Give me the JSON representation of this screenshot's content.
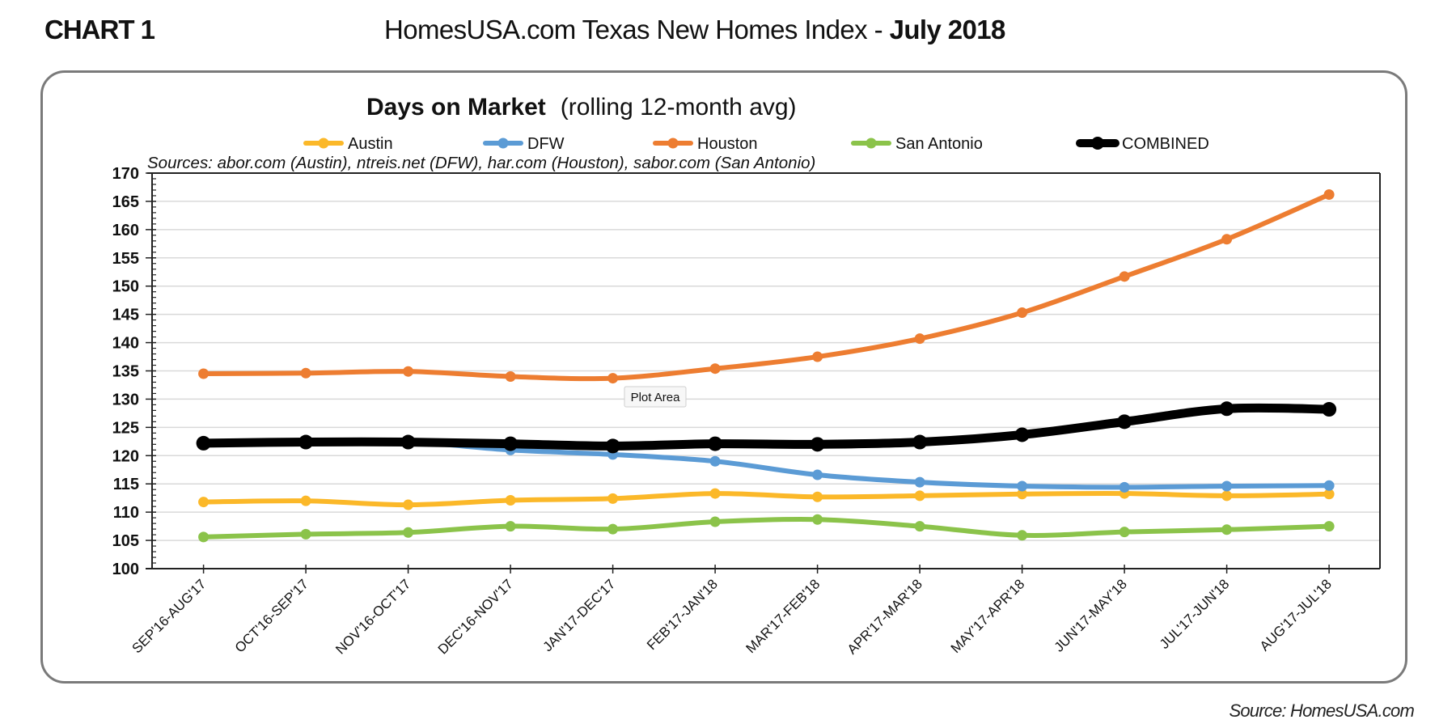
{
  "header": {
    "chart_number": "CHART 1",
    "title_prefix": "HomesUSA.com Texas New Homes Index - ",
    "title_bold": "July 2018"
  },
  "footer": {
    "source": "Source: HomesUSA.com"
  },
  "tooltip": {
    "label": "Plot Area"
  },
  "colors": {
    "Austin": "#FBB829",
    "DFW": "#5B9BD5",
    "Houston": "#ED7D31",
    "San Antonio": "#8BC34A",
    "COMBINED": "#000000",
    "grid": "#d9d9d9",
    "card_border": "#7a7a7a"
  },
  "chart_data": {
    "type": "line",
    "title": "Days on Market",
    "subtitle": "(rolling 12-month avg)",
    "annotation": "Sources:  abor.com (Austin), ntreis.net (DFW), har.com (Houston), sabor.com (San Antonio)",
    "xlabel": "",
    "ylabel": "",
    "ylim": [
      100,
      170
    ],
    "yticks": [
      100,
      105,
      110,
      115,
      120,
      125,
      130,
      135,
      140,
      145,
      150,
      155,
      160,
      165,
      170
    ],
    "grid": true,
    "legend_position": "top",
    "categories": [
      "SEP'16-AUG'17",
      "OCT'16-SEP'17",
      "NOV'16-OCT'17",
      "DEC'16-NOV'17",
      "JAN'17-DEC'17",
      "FEB'17-JAN'18",
      "MAR'17-FEB'18",
      "APR'17-MAR'18",
      "MAY'17-APR'18",
      "JUN'17-MAY'18",
      "JUL'17-JUN'18",
      "AUG'17-JUL'18"
    ],
    "series": [
      {
        "name": "Austin",
        "values": [
          111.8,
          112.0,
          111.3,
          112.1,
          112.4,
          113.3,
          112.7,
          112.9,
          113.2,
          113.3,
          112.9,
          113.2
        ]
      },
      {
        "name": "DFW",
        "values": [
          122.2,
          122.4,
          122.4,
          121.0,
          120.2,
          119.0,
          116.6,
          115.3,
          114.6,
          114.4,
          114.6,
          114.7
        ]
      },
      {
        "name": "Houston",
        "values": [
          134.5,
          134.6,
          134.9,
          134.0,
          133.7,
          135.4,
          137.5,
          140.7,
          145.3,
          151.7,
          158.3,
          166.2
        ]
      },
      {
        "name": "San Antonio",
        "values": [
          105.6,
          106.1,
          106.4,
          107.5,
          107.0,
          108.3,
          108.7,
          107.5,
          105.9,
          106.5,
          106.9,
          107.5
        ]
      },
      {
        "name": "COMBINED",
        "values": [
          122.2,
          122.4,
          122.4,
          122.1,
          121.7,
          122.1,
          122.0,
          122.4,
          123.7,
          126.0,
          128.3,
          128.2
        ]
      }
    ]
  }
}
